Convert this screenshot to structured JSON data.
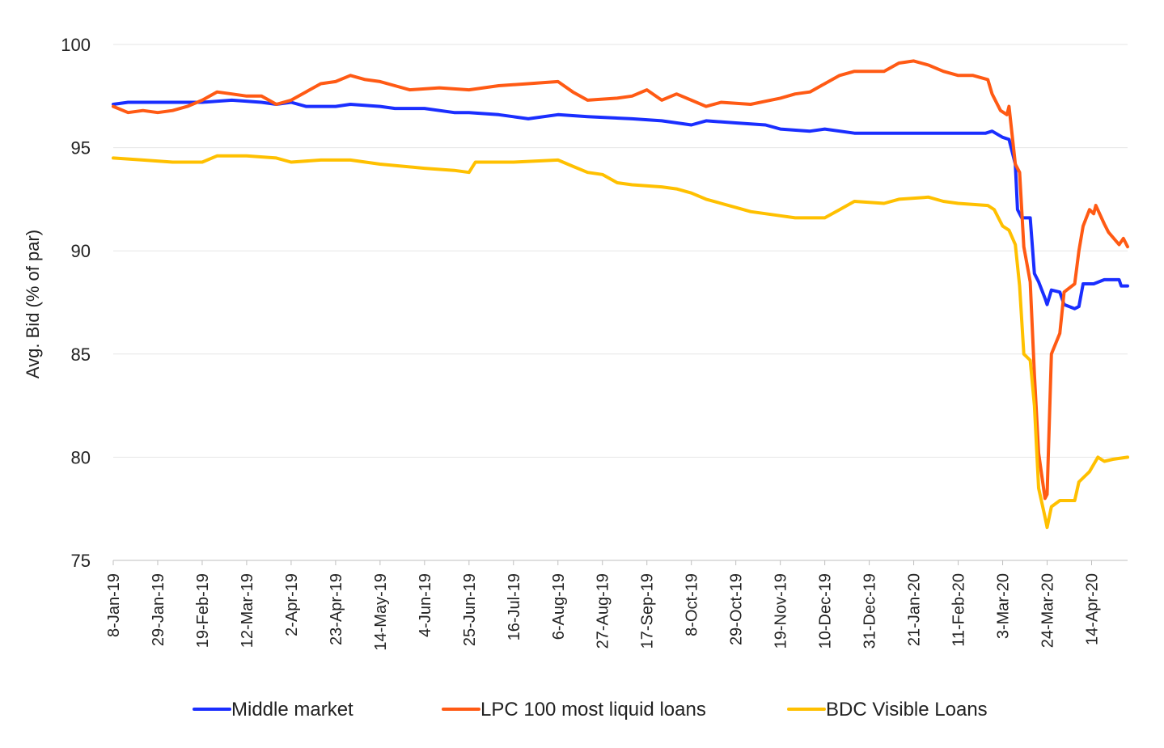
{
  "chart_data": {
    "type": "line",
    "title": "",
    "xlabel": "",
    "ylabel": "Avg. Bid (% of par)",
    "ylim": [
      75,
      100
    ],
    "yticks": [
      "75",
      "80",
      "85",
      "90",
      "95",
      "100"
    ],
    "grid": "horizontal",
    "legend_position": "bottom",
    "x_start": "2019-01-08",
    "x_end": "2020-05-01",
    "xtick_labels": [
      "8-Jan-19",
      "29-Jan-19",
      "19-Feb-19",
      "12-Mar-19",
      "2-Apr-19",
      "23-Apr-19",
      "14-May-19",
      "4-Jun-19",
      "25-Jun-19",
      "16-Jul-19",
      "6-Aug-19",
      "27-Aug-19",
      "17-Sep-19",
      "8-Oct-19",
      "29-Oct-19",
      "19-Nov-19",
      "10-Dec-19",
      "31-Dec-19",
      "21-Jan-20",
      "11-Feb-20",
      "3-Mar-20",
      "24-Mar-20",
      "14-Apr-20"
    ],
    "series": [
      {
        "name": "Middle market",
        "color": "#1a2eff",
        "points": [
          [
            "2019-01-08",
            97.1
          ],
          [
            "2019-01-15",
            97.2
          ],
          [
            "2019-01-29",
            97.2
          ],
          [
            "2019-02-12",
            97.2
          ],
          [
            "2019-02-19",
            97.2
          ],
          [
            "2019-03-05",
            97.3
          ],
          [
            "2019-03-19",
            97.2
          ],
          [
            "2019-03-26",
            97.1
          ],
          [
            "2019-04-02",
            97.2
          ],
          [
            "2019-04-09",
            97.0
          ],
          [
            "2019-04-23",
            97.0
          ],
          [
            "2019-04-30",
            97.1
          ],
          [
            "2019-05-14",
            97.0
          ],
          [
            "2019-05-21",
            96.9
          ],
          [
            "2019-06-04",
            96.9
          ],
          [
            "2019-06-18",
            96.7
          ],
          [
            "2019-06-25",
            96.7
          ],
          [
            "2019-07-09",
            96.6
          ],
          [
            "2019-07-16",
            96.5
          ],
          [
            "2019-07-23",
            96.4
          ],
          [
            "2019-08-06",
            96.6
          ],
          [
            "2019-08-20",
            96.5
          ],
          [
            "2019-09-10",
            96.4
          ],
          [
            "2019-09-24",
            96.3
          ],
          [
            "2019-10-08",
            96.1
          ],
          [
            "2019-10-15",
            96.3
          ],
          [
            "2019-10-29",
            96.2
          ],
          [
            "2019-11-12",
            96.1
          ],
          [
            "2019-11-19",
            95.9
          ],
          [
            "2019-12-03",
            95.8
          ],
          [
            "2019-12-10",
            95.9
          ],
          [
            "2019-12-24",
            95.7
          ],
          [
            "2019-12-31",
            95.7
          ],
          [
            "2020-01-14",
            95.7
          ],
          [
            "2020-01-21",
            95.7
          ],
          [
            "2020-02-04",
            95.7
          ],
          [
            "2020-02-11",
            95.7
          ],
          [
            "2020-02-24",
            95.7
          ],
          [
            "2020-02-27",
            95.8
          ],
          [
            "2020-03-03",
            95.5
          ],
          [
            "2020-03-06",
            95.4
          ],
          [
            "2020-03-09",
            94.2
          ],
          [
            "2020-03-10",
            92.0
          ],
          [
            "2020-03-12",
            91.6
          ],
          [
            "2020-03-16",
            91.6
          ],
          [
            "2020-03-18",
            88.9
          ],
          [
            "2020-03-20",
            88.5
          ],
          [
            "2020-03-23",
            87.7
          ],
          [
            "2020-03-24",
            87.4
          ],
          [
            "2020-03-26",
            88.1
          ],
          [
            "2020-03-30",
            88.0
          ],
          [
            "2020-04-01",
            87.4
          ],
          [
            "2020-04-06",
            87.2
          ],
          [
            "2020-04-08",
            87.3
          ],
          [
            "2020-04-10",
            88.4
          ],
          [
            "2020-04-15",
            88.4
          ],
          [
            "2020-04-20",
            88.6
          ],
          [
            "2020-04-27",
            88.6
          ],
          [
            "2020-04-28",
            88.3
          ],
          [
            "2020-05-01",
            88.3
          ]
        ]
      },
      {
        "name": "LPC 100 most liquid loans",
        "color": "#ff5a14",
        "points": [
          [
            "2019-01-08",
            97.0
          ],
          [
            "2019-01-15",
            96.7
          ],
          [
            "2019-01-22",
            96.8
          ],
          [
            "2019-01-29",
            96.7
          ],
          [
            "2019-02-05",
            96.8
          ],
          [
            "2019-02-12",
            97.0
          ],
          [
            "2019-02-19",
            97.3
          ],
          [
            "2019-02-26",
            97.7
          ],
          [
            "2019-03-05",
            97.6
          ],
          [
            "2019-03-12",
            97.5
          ],
          [
            "2019-03-19",
            97.5
          ],
          [
            "2019-03-26",
            97.1
          ],
          [
            "2019-04-02",
            97.3
          ],
          [
            "2019-04-09",
            97.7
          ],
          [
            "2019-04-16",
            98.1
          ],
          [
            "2019-04-23",
            98.2
          ],
          [
            "2019-04-30",
            98.5
          ],
          [
            "2019-05-07",
            98.3
          ],
          [
            "2019-05-14",
            98.2
          ],
          [
            "2019-05-21",
            98.0
          ],
          [
            "2019-05-28",
            97.8
          ],
          [
            "2019-06-11",
            97.9
          ],
          [
            "2019-06-25",
            97.8
          ],
          [
            "2019-07-09",
            98.0
          ],
          [
            "2019-07-23",
            98.1
          ],
          [
            "2019-08-06",
            98.2
          ],
          [
            "2019-08-13",
            97.7
          ],
          [
            "2019-08-20",
            97.3
          ],
          [
            "2019-09-03",
            97.4
          ],
          [
            "2019-09-10",
            97.5
          ],
          [
            "2019-09-17",
            97.8
          ],
          [
            "2019-09-24",
            97.3
          ],
          [
            "2019-10-01",
            97.6
          ],
          [
            "2019-10-08",
            97.3
          ],
          [
            "2019-10-15",
            97.0
          ],
          [
            "2019-10-22",
            97.2
          ],
          [
            "2019-11-05",
            97.1
          ],
          [
            "2019-11-19",
            97.4
          ],
          [
            "2019-11-26",
            97.6
          ],
          [
            "2019-12-03",
            97.7
          ],
          [
            "2019-12-10",
            98.1
          ],
          [
            "2019-12-17",
            98.5
          ],
          [
            "2019-12-24",
            98.7
          ],
          [
            "2020-01-07",
            98.7
          ],
          [
            "2020-01-14",
            99.1
          ],
          [
            "2020-01-21",
            99.2
          ],
          [
            "2020-01-28",
            99.0
          ],
          [
            "2020-02-04",
            98.7
          ],
          [
            "2020-02-11",
            98.5
          ],
          [
            "2020-02-18",
            98.5
          ],
          [
            "2020-02-25",
            98.3
          ],
          [
            "2020-02-27",
            97.6
          ],
          [
            "2020-03-02",
            96.8
          ],
          [
            "2020-03-05",
            96.6
          ],
          [
            "2020-03-06",
            97.0
          ],
          [
            "2020-03-09",
            94.2
          ],
          [
            "2020-03-11",
            93.8
          ],
          [
            "2020-03-13",
            90.2
          ],
          [
            "2020-03-16",
            88.5
          ],
          [
            "2020-03-18",
            84.0
          ],
          [
            "2020-03-20",
            80.2
          ],
          [
            "2020-03-23",
            78.0
          ],
          [
            "2020-03-24",
            78.2
          ],
          [
            "2020-03-26",
            85.0
          ],
          [
            "2020-03-30",
            86.0
          ],
          [
            "2020-04-01",
            88.0
          ],
          [
            "2020-04-06",
            88.4
          ],
          [
            "2020-04-08",
            90.0
          ],
          [
            "2020-04-10",
            91.2
          ],
          [
            "2020-04-13",
            92.0
          ],
          [
            "2020-04-15",
            91.8
          ],
          [
            "2020-04-16",
            92.2
          ],
          [
            "2020-04-20",
            91.3
          ],
          [
            "2020-04-22",
            90.9
          ],
          [
            "2020-04-27",
            90.3
          ],
          [
            "2020-04-29",
            90.6
          ],
          [
            "2020-05-01",
            90.2
          ]
        ]
      },
      {
        "name": "BDC Visible Loans",
        "color": "#ffc000",
        "points": [
          [
            "2019-01-08",
            94.5
          ],
          [
            "2019-01-22",
            94.4
          ],
          [
            "2019-02-05",
            94.3
          ],
          [
            "2019-02-19",
            94.3
          ],
          [
            "2019-02-26",
            94.6
          ],
          [
            "2019-03-12",
            94.6
          ],
          [
            "2019-03-26",
            94.5
          ],
          [
            "2019-04-02",
            94.3
          ],
          [
            "2019-04-16",
            94.4
          ],
          [
            "2019-04-30",
            94.4
          ],
          [
            "2019-05-14",
            94.2
          ],
          [
            "2019-06-04",
            94.0
          ],
          [
            "2019-06-18",
            93.9
          ],
          [
            "2019-06-25",
            93.8
          ],
          [
            "2019-06-28",
            94.3
          ],
          [
            "2019-07-16",
            94.3
          ],
          [
            "2019-08-06",
            94.4
          ],
          [
            "2019-08-13",
            94.1
          ],
          [
            "2019-08-20",
            93.8
          ],
          [
            "2019-08-27",
            93.7
          ],
          [
            "2019-09-03",
            93.3
          ],
          [
            "2019-09-10",
            93.2
          ],
          [
            "2019-09-24",
            93.1
          ],
          [
            "2019-10-01",
            93.0
          ],
          [
            "2019-10-08",
            92.8
          ],
          [
            "2019-10-15",
            92.5
          ],
          [
            "2019-10-22",
            92.3
          ],
          [
            "2019-10-29",
            92.1
          ],
          [
            "2019-11-05",
            91.9
          ],
          [
            "2019-11-19",
            91.7
          ],
          [
            "2019-11-26",
            91.6
          ],
          [
            "2019-12-10",
            91.6
          ],
          [
            "2019-12-17",
            92.0
          ],
          [
            "2019-12-24",
            92.4
          ],
          [
            "2020-01-07",
            92.3
          ],
          [
            "2020-01-14",
            92.5
          ],
          [
            "2020-01-28",
            92.6
          ],
          [
            "2020-02-04",
            92.4
          ],
          [
            "2020-02-11",
            92.3
          ],
          [
            "2020-02-25",
            92.2
          ],
          [
            "2020-02-28",
            92.0
          ],
          [
            "2020-03-03",
            91.2
          ],
          [
            "2020-03-06",
            91.0
          ],
          [
            "2020-03-09",
            90.3
          ],
          [
            "2020-03-11",
            88.3
          ],
          [
            "2020-03-13",
            85.0
          ],
          [
            "2020-03-16",
            84.7
          ],
          [
            "2020-03-18",
            82.5
          ],
          [
            "2020-03-20",
            78.5
          ],
          [
            "2020-03-23",
            77.1
          ],
          [
            "2020-03-24",
            76.6
          ],
          [
            "2020-03-26",
            77.6
          ],
          [
            "2020-03-30",
            77.9
          ],
          [
            "2020-04-03",
            77.9
          ],
          [
            "2020-04-06",
            77.9
          ],
          [
            "2020-04-08",
            78.8
          ],
          [
            "2020-04-13",
            79.3
          ],
          [
            "2020-04-17",
            80.0
          ],
          [
            "2020-04-20",
            79.8
          ],
          [
            "2020-04-24",
            79.9
          ],
          [
            "2020-05-01",
            80.0
          ]
        ]
      }
    ]
  }
}
